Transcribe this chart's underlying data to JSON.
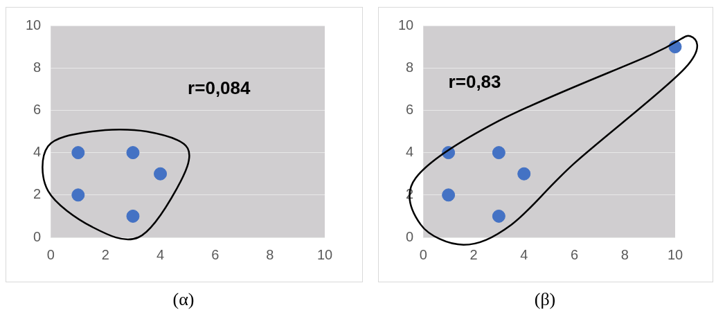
{
  "chart_data": [
    {
      "type": "scatter",
      "x": [
        1,
        3,
        4,
        1,
        3
      ],
      "values": [
        4,
        4,
        3,
        2,
        1
      ],
      "color": "#4472c4",
      "marker": "circle",
      "xlim": [
        0,
        10
      ],
      "ylim": [
        0,
        10
      ],
      "xticks": [
        0,
        2,
        4,
        6,
        8,
        10
      ],
      "yticks": [
        0,
        2,
        4,
        6,
        8,
        10
      ],
      "grid": "y",
      "legend": false,
      "annotations": [
        "r=0,084",
        "(α)"
      ]
    },
    {
      "type": "scatter",
      "x": [
        1,
        3,
        4,
        1,
        3,
        10
      ],
      "values": [
        4,
        4,
        3,
        2,
        1,
        9
      ],
      "color": "#4472c4",
      "marker": "circle",
      "xlim": [
        0,
        10
      ],
      "ylim": [
        0,
        10
      ],
      "xticks": [
        0,
        2,
        4,
        6,
        8,
        10
      ],
      "yticks": [
        0,
        2,
        4,
        6,
        8,
        10
      ],
      "grid": "y",
      "legend": false,
      "annotations": [
        "r=0,83",
        "(β)"
      ]
    }
  ]
}
